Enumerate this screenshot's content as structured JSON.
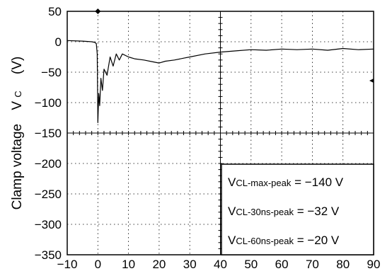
{
  "chart_data": {
    "type": "line",
    "ylabel_main": "Clamp voltage",
    "ylabel_symbol": "V",
    "ylabel_sub": "C",
    "ylabel_unit": "(V)",
    "xlim": [
      -10,
      90
    ],
    "ylim": [
      -350,
      50
    ],
    "x_ticks": [
      -10,
      0,
      10,
      20,
      30,
      40,
      50,
      60,
      70,
      80,
      90
    ],
    "y_ticks": [
      50,
      0,
      -50,
      -100,
      -150,
      -200,
      -250,
      -300,
      -350
    ],
    "x_tick_labels": [
      "−10",
      "0",
      "10",
      "20",
      "30",
      "40",
      "50",
      "60",
      "70",
      "80",
      "90"
    ],
    "y_tick_labels": [
      "50",
      "0",
      "−50",
      "−100",
      "−150",
      "−200",
      "−250",
      "−300",
      "−350"
    ],
    "grid": "dotted",
    "series": [
      {
        "color": "#000000",
        "x": [
          -10,
          -5,
          -2,
          -1,
          -0.5,
          -0.2,
          0,
          0.3,
          0.6,
          1,
          1.5,
          2,
          3,
          4,
          5,
          6,
          7,
          8,
          10,
          12,
          15,
          18,
          20,
          22,
          25,
          28,
          30,
          35,
          40,
          45,
          50,
          55,
          60,
          65,
          70,
          75,
          80,
          85,
          90
        ],
        "y": [
          2,
          1,
          0,
          -1,
          -3,
          -20,
          -133,
          -85,
          -105,
          -60,
          -80,
          -45,
          -55,
          -25,
          -40,
          -20,
          -30,
          -20,
          -25,
          -28,
          -30,
          -33,
          -35,
          -32,
          -30,
          -27,
          -25,
          -20,
          -17,
          -15,
          -13,
          -14,
          -12,
          -13,
          -12,
          -14,
          -11,
          -13,
          -12
        ]
      }
    ],
    "markers": [
      {
        "label": "trigger",
        "x": 0,
        "y": 50
      },
      {
        "label": "level",
        "x": 90,
        "y": -64
      }
    ],
    "annotations": [
      {
        "prefix": "V",
        "sub": "CL-max-peak",
        "suffix": " = −140 V"
      },
      {
        "prefix": "V",
        "sub": "CL-30ns-peak",
        "suffix": " = −32 V"
      },
      {
        "prefix": "V",
        "sub": "CL-60ns-peak",
        "suffix": " = −20 V"
      }
    ]
  }
}
